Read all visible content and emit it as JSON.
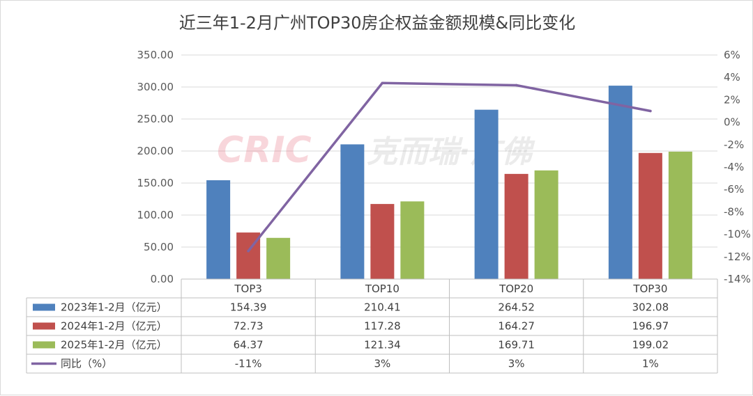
{
  "chart_data": {
    "type": "bar",
    "title": "近三年1-2月广州TOP30房企权益金额规模&同比变化",
    "categories": [
      "TOP3",
      "TOP10",
      "TOP20",
      "TOP30"
    ],
    "series": [
      {
        "name": "2023年1-2月（亿元）",
        "kind": "bar",
        "axis": "left",
        "color": "#4f81bd",
        "values": [
          154.39,
          210.41,
          264.52,
          302.08
        ],
        "labels": [
          "154.39",
          "210.41",
          "264.52",
          "302.08"
        ]
      },
      {
        "name": "2024年1-2月（亿元）",
        "kind": "bar",
        "axis": "left",
        "color": "#c0504d",
        "values": [
          72.73,
          117.28,
          164.27,
          196.97
        ],
        "labels": [
          "72.73",
          "117.28",
          "164.27",
          "196.97"
        ]
      },
      {
        "name": "2025年1-2月（亿元）",
        "kind": "bar",
        "axis": "left",
        "color": "#9bbb59",
        "values": [
          64.37,
          121.34,
          169.71,
          199.02
        ],
        "labels": [
          "64.37",
          "121.34",
          "169.71",
          "199.02"
        ]
      },
      {
        "name": "同比（%）",
        "kind": "line",
        "axis": "right",
        "color": "#8064a2",
        "values": [
          -11.5,
          3.5,
          3.3,
          1.0
        ],
        "labels": [
          "-11%",
          "3%",
          "3%",
          "1%"
        ]
      }
    ],
    "y_left": {
      "min": 0,
      "max": 350,
      "step": 50,
      "tick_labels": [
        "0.00",
        "50.00",
        "100.00",
        "150.00",
        "200.00",
        "250.00",
        "300.00",
        "350.00"
      ]
    },
    "y_right": {
      "min": -14,
      "max": 6,
      "step": 2,
      "tick_labels": [
        "-14%",
        "-12%",
        "-10%",
        "-8%",
        "-6%",
        "-4%",
        "-2%",
        "0%",
        "2%",
        "4%",
        "6%"
      ]
    },
    "grid": true,
    "legend": "data-table"
  },
  "watermark": {
    "latin": "CRIC",
    "chinese": "克而瑞·广佛"
  }
}
